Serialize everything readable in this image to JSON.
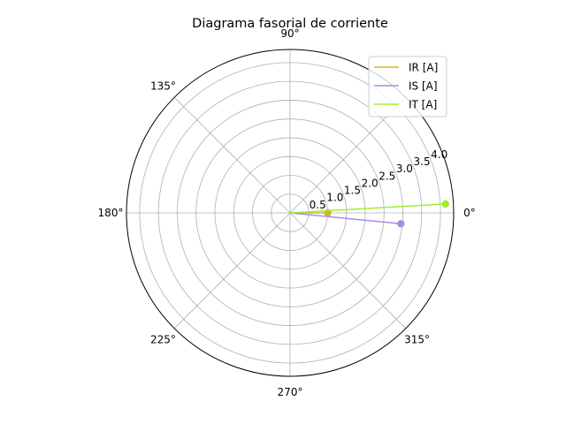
{
  "chart_data": {
    "type": "polar",
    "title": "Diagrama fasorial de corriente",
    "angle_ticks": [
      {
        "deg": 0,
        "label": "0°"
      },
      {
        "deg": 45,
        "label": ""
      },
      {
        "deg": 90,
        "label": "90°"
      },
      {
        "deg": 135,
        "label": "135°"
      },
      {
        "deg": 180,
        "label": "180°"
      },
      {
        "deg": 225,
        "label": "225°"
      },
      {
        "deg": 270,
        "label": "270°"
      },
      {
        "deg": 315,
        "label": "315°"
      }
    ],
    "r_ticks": [
      0.5,
      1.0,
      1.5,
      2.0,
      2.5,
      3.0,
      3.5,
      4.0
    ],
    "r_tick_labels": [
      "0.5",
      "1.0",
      "1.5",
      "2.0",
      "2.5",
      "3.0",
      "3.5",
      "4.0"
    ],
    "rlim": [
      0,
      4.35
    ],
    "r_label_angle_deg": 22.5,
    "grid": true,
    "legend_position": "top-right",
    "series": [
      {
        "name": "IR [A]",
        "color": "#d4b528",
        "angle_deg": 0.0,
        "magnitude": 1.0
      },
      {
        "name": "IS [A]",
        "color": "#a98ce0",
        "angle_deg": -5.6,
        "magnitude": 2.96
      },
      {
        "name": "IT [A]",
        "color": "#a3ec35",
        "angle_deg": 3.3,
        "magnitude": 4.14
      }
    ]
  }
}
